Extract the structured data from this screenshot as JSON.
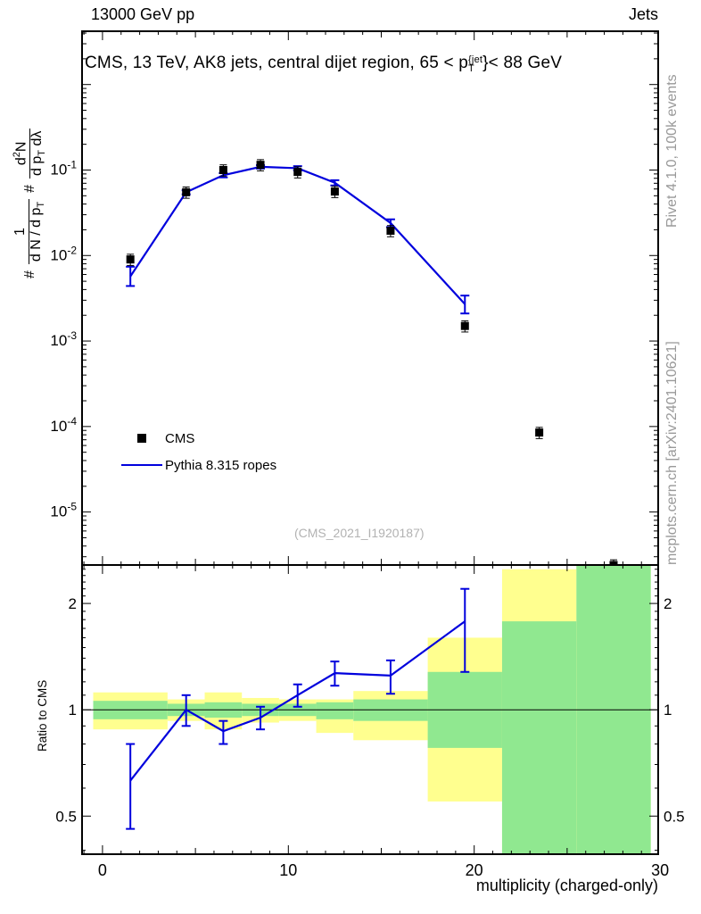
{
  "header": {
    "left": "13000 GeV pp",
    "right": "Jets"
  },
  "title": {
    "pre": "CMS, 13 TeV, AK8 jets, central dijet region, 65 < p",
    "sup": "{jet",
    "sub": "T",
    "post": "}< 88 GeV"
  },
  "ylabel_top": {
    "h1": "#",
    "f1n": "1",
    "f1d_pre": "d N / d p",
    "f1d_sub": "T",
    "h2": "#",
    "f2n_pre": "d",
    "f2n_sup": "2",
    "f2n_post": "N",
    "f2d_pre": "d p",
    "f2d_sub": "T",
    "f2d_post": " dλ"
  },
  "ylabel_ratio": "Ratio to CMS",
  "xlabel": "multiplicity (charged-only)",
  "watermark": "(CMS_2021_I1920187)",
  "side_text_top": "Rivet 4.1.0,  100k events",
  "side_text_bottom": "mcplots.cern.ch [arXiv:2401.10621]",
  "legend": {
    "cms": "CMS",
    "mc": "Pythia 8.315 ropes"
  },
  "colors": {
    "mc_line": "#0000dd",
    "data_marker": "#000000",
    "band_yellow": "#ffff8f",
    "band_green": "#90e890",
    "frame": "#000000",
    "side_text": "#999999"
  },
  "chart_data": {
    "type": "line",
    "title": "CMS, 13 TeV, AK8 jets, central dijet region, 65 < p_T^{jet} < 88 GeV",
    "xlabel": "multiplicity (charged-only)",
    "ylabel": "1/(dN/dp_T) d^2N/(dp_T dlambda)",
    "ylabel_ratio": "Ratio to CMS",
    "x_range": [
      -1.1,
      29.9
    ],
    "x_ticks": [
      0,
      10,
      20,
      30
    ],
    "top_panel": {
      "y_scale": "log",
      "y_range": [
        2.4e-06,
        4.2
      ],
      "y_tick_exponents": [
        -1,
        -2,
        -3,
        -4,
        -5
      ],
      "cms": {
        "name": "CMS",
        "x": [
          1.5,
          4.5,
          6.5,
          8.5,
          10.5,
          12.5,
          15.5,
          19.5,
          23.5,
          27.5
        ],
        "y": [
          0.009,
          0.055,
          0.1,
          0.115,
          0.095,
          0.056,
          0.0195,
          0.0015,
          8.5e-05,
          2.4e-06
        ]
      },
      "mc": {
        "name": "Pythia 8.315 ropes",
        "x": [
          1.5,
          4.5,
          6.5,
          8.5,
          10.5,
          12.5,
          15.5,
          19.5
        ],
        "y": [
          0.0057,
          0.055,
          0.087,
          0.109,
          0.105,
          0.071,
          0.024,
          0.0027
        ],
        "y_lo": [
          0.0044,
          0.052,
          0.082,
          0.104,
          0.099,
          0.066,
          0.0215,
          0.0021
        ],
        "y_hi": [
          0.0074,
          0.058,
          0.092,
          0.114,
          0.111,
          0.076,
          0.0265,
          0.0034
        ]
      }
    },
    "ratio_panel": {
      "y_scale": "log",
      "y_range": [
        0.39,
        2.57
      ],
      "y_ticks": [
        0.5,
        1,
        2
      ],
      "ref_line": 1,
      "mc_ratio": {
        "x": [
          1.5,
          4.5,
          6.5,
          8.5,
          10.5,
          12.5,
          15.5,
          19.5
        ],
        "y": [
          0.63,
          1.0,
          0.87,
          0.95,
          1.1,
          1.27,
          1.25,
          1.78
        ],
        "y_lo": [
          0.46,
          0.9,
          0.8,
          0.88,
          1.02,
          1.17,
          1.11,
          1.28
        ],
        "y_hi": [
          0.8,
          1.1,
          0.93,
          1.02,
          1.18,
          1.37,
          1.38,
          2.2
        ]
      },
      "bands": {
        "edges": [
          -0.5,
          3.5,
          5.5,
          7.5,
          9.5,
          11.5,
          13.5,
          17.5,
          21.5,
          25.5,
          29.5
        ],
        "yellow_lo": [
          0.88,
          0.93,
          0.88,
          0.92,
          0.93,
          0.86,
          0.82,
          0.55,
          0.39,
          0.39
        ],
        "yellow_hi": [
          1.12,
          1.07,
          1.12,
          1.08,
          1.07,
          1.07,
          1.13,
          1.6,
          2.5,
          2.57
        ],
        "green_lo": [
          0.94,
          0.96,
          0.95,
          0.96,
          0.96,
          0.94,
          0.93,
          0.78,
          0.39,
          0.39
        ],
        "green_hi": [
          1.06,
          1.04,
          1.05,
          1.04,
          1.04,
          1.05,
          1.07,
          1.28,
          1.78,
          2.57
        ]
      }
    }
  }
}
